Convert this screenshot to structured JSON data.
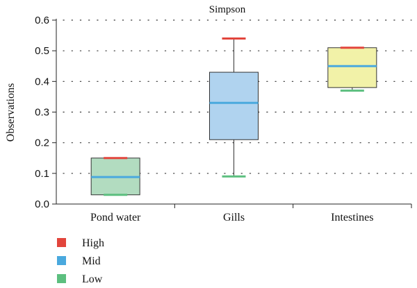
{
  "chart_data": {
    "type": "box",
    "title": "Simpson",
    "ylabel": "Observations",
    "xlabel": "",
    "ylim": [
      0,
      0.6
    ],
    "yticks": [
      "0.0",
      "0.1",
      "0.2",
      "0.3",
      "0.4",
      "0.5",
      "0.6"
    ],
    "grid": "horizontal-dotted",
    "categories": [
      "Pond water",
      "Gills",
      "Intestines"
    ],
    "boxes": [
      {
        "category": "Pond water",
        "low": 0.03,
        "q1": 0.03,
        "mid": 0.088,
        "q3": 0.15,
        "high": 0.15,
        "fill": "#b2dcc0"
      },
      {
        "category": "Gills",
        "low": 0.09,
        "q1": 0.21,
        "mid": 0.33,
        "q3": 0.43,
        "high": 0.54,
        "fill": "#b0d3ef"
      },
      {
        "category": "Intestines",
        "low": 0.37,
        "q1": 0.38,
        "mid": 0.45,
        "q3": 0.51,
        "high": 0.51,
        "fill": "#f2f2a8"
      }
    ],
    "legend": [
      {
        "label": "High",
        "color": "#e2453c"
      },
      {
        "label": "Mid",
        "color": "#4aa9de"
      },
      {
        "label": "Low",
        "color": "#5cbf7f"
      }
    ],
    "legend_position": "bottom-left"
  }
}
